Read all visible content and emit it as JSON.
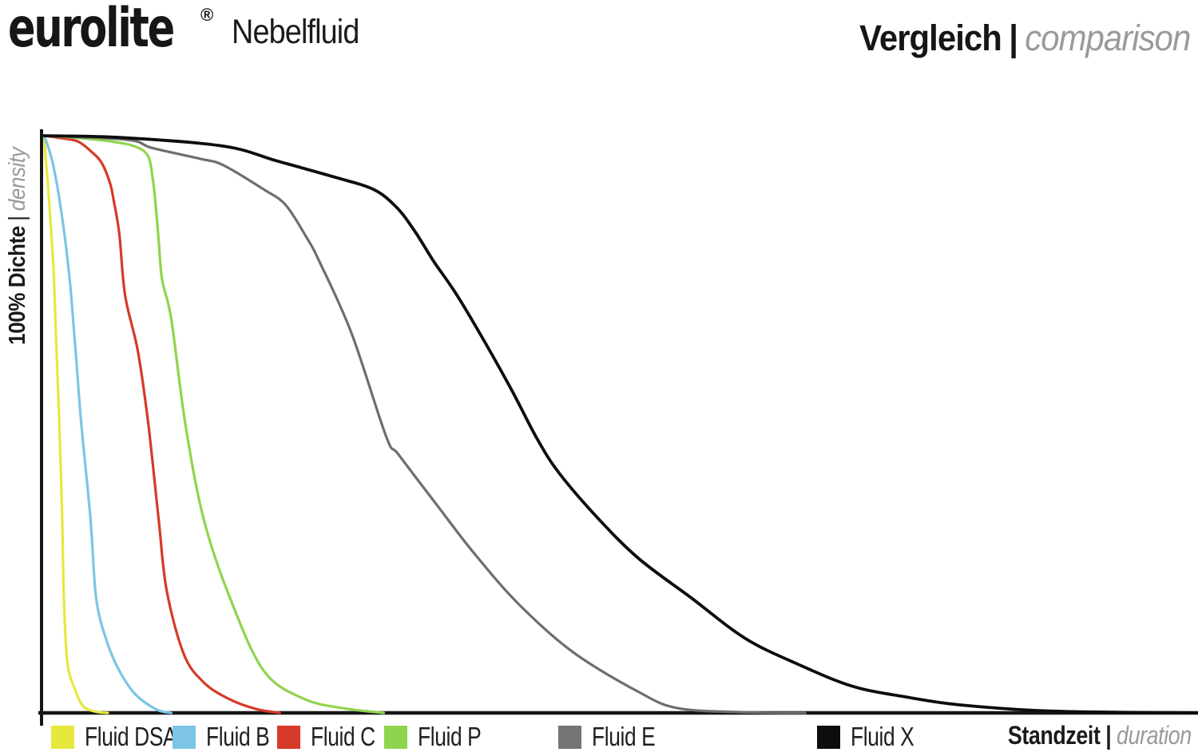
{
  "header": {
    "logo_text": "eurolite",
    "registered_mark": "®",
    "product": "Nebelfluid",
    "title_de": "Vergleich",
    "title_separator": "|",
    "title_en": "comparison"
  },
  "axes": {
    "y_label_de": "100% Dichte",
    "y_separator": "|",
    "y_label_en": "density",
    "x_label_de": "Standzeit",
    "x_separator": "|",
    "x_label_en": "duration"
  },
  "legend": [
    {
      "label": "Fluid DSA",
      "color": "#e7e83e"
    },
    {
      "label": "Fluid B",
      "color": "#7cc5e5"
    },
    {
      "label": "Fluid C",
      "color": "#d63a28"
    },
    {
      "label": "Fluid P",
      "color": "#8fd44d"
    },
    {
      "label": "Fluid E",
      "color": "#757575"
    },
    {
      "label": "Fluid X",
      "color": "#0d0d0d"
    }
  ],
  "colors": {
    "axis": "#161616",
    "text_dark": "#1b1b1b",
    "text_gray": "#9a9a9a",
    "background": "#ffffff"
  },
  "chart_data": {
    "type": "line",
    "title": "eurolite Nebelfluid — Vergleich | comparison",
    "xlabel": "Standzeit | duration",
    "ylabel": "100% Dichte | density",
    "x_range": [
      0,
      1
    ],
    "ylim": [
      0,
      100
    ],
    "grid": false,
    "legend_position": "bottom",
    "note": "x is unitless relative duration (no tick marks shown); y is fog density in % of initial (100%)",
    "series": [
      {
        "name": "Fluid DSA",
        "color": "#e7e83e",
        "width": 3.2,
        "points": [
          [
            0.001,
            100
          ],
          [
            0.002,
            96.5
          ],
          [
            0.004,
            92
          ],
          [
            0.006,
            86
          ],
          [
            0.009,
            77
          ],
          [
            0.011,
            66
          ],
          [
            0.014,
            50.2
          ],
          [
            0.0165,
            33.6
          ],
          [
            0.018,
            19.8
          ],
          [
            0.021,
            8.7
          ],
          [
            0.028,
            3.9
          ],
          [
            0.035,
            1.1
          ],
          [
            0.046,
            0.2
          ],
          [
            0.056,
            0
          ]
        ]
      },
      {
        "name": "Fluid B",
        "color": "#7cc5e5",
        "width": 3.2,
        "points": [
          [
            0.001,
            100
          ],
          [
            0.004,
            98.3
          ],
          [
            0.008,
            95.5
          ],
          [
            0.012,
            91.5
          ],
          [
            0.016,
            86.5
          ],
          [
            0.02,
            80.5
          ],
          [
            0.024,
            73
          ],
          [
            0.028,
            63
          ],
          [
            0.033,
            50.2
          ],
          [
            0.041,
            33.6
          ],
          [
            0.046,
            19.8
          ],
          [
            0.055,
            12.5
          ],
          [
            0.066,
            7.3
          ],
          [
            0.08,
            3.2
          ],
          [
            0.098,
            0.6
          ],
          [
            0.111,
            0
          ]
        ]
      },
      {
        "name": "Fluid C",
        "color": "#d63a28",
        "width": 3.2,
        "points": [
          [
            0.001,
            100
          ],
          [
            0.015,
            99.6
          ],
          [
            0.03,
            99
          ],
          [
            0.042,
            97.2
          ],
          [
            0.051,
            95.2
          ],
          [
            0.058,
            91.7
          ],
          [
            0.061,
            88.9
          ],
          [
            0.066,
            83
          ],
          [
            0.071,
            72.3
          ],
          [
            0.082,
            62.7
          ],
          [
            0.091,
            50.2
          ],
          [
            0.1,
            33.6
          ],
          [
            0.107,
            21.2
          ],
          [
            0.122,
            10.1
          ],
          [
            0.139,
            5.3
          ],
          [
            0.16,
            2.5
          ],
          [
            0.184,
            0.7
          ],
          [
            0.205,
            0
          ]
        ]
      },
      {
        "name": "Fluid P",
        "color": "#8fd44d",
        "width": 3.2,
        "points": [
          [
            0.001,
            100
          ],
          [
            0.025,
            99.7
          ],
          [
            0.059,
            99
          ],
          [
            0.08,
            98.1
          ],
          [
            0.091,
            96.4
          ],
          [
            0.095,
            92.4
          ],
          [
            0.097,
            88.9
          ],
          [
            0.1,
            82
          ],
          [
            0.103,
            75.1
          ],
          [
            0.111,
            68.2
          ],
          [
            0.123,
            50.2
          ],
          [
            0.139,
            33.6
          ],
          [
            0.162,
            19.8
          ],
          [
            0.191,
            7.3
          ],
          [
            0.225,
            2.5
          ],
          [
            0.26,
            0.8
          ],
          [
            0.295,
            0
          ]
        ]
      },
      {
        "name": "Fluid E",
        "color": "#6e6e6e",
        "width": 3.2,
        "points": [
          [
            0.001,
            100
          ],
          [
            0.073,
            99.3
          ],
          [
            0.094,
            97.9
          ],
          [
            0.136,
            96
          ],
          [
            0.156,
            94.9
          ],
          [
            0.191,
            90.7
          ],
          [
            0.21,
            88
          ],
          [
            0.228,
            82.4
          ],
          [
            0.239,
            78.3
          ],
          [
            0.267,
            65.8
          ],
          [
            0.297,
            47.9
          ],
          [
            0.308,
            44.7
          ],
          [
            0.341,
            36
          ],
          [
            0.373,
            27.7
          ],
          [
            0.412,
            18.8
          ],
          [
            0.459,
            10.5
          ],
          [
            0.516,
            3.6
          ],
          [
            0.55,
            0.8
          ],
          [
            0.608,
            0.1
          ],
          [
            0.66,
            0
          ]
        ]
      },
      {
        "name": "Fluid X",
        "color": "#0d0d0d",
        "width": 3.8,
        "points": [
          [
            0.001,
            100
          ],
          [
            0.066,
            99.7
          ],
          [
            0.156,
            98.2
          ],
          [
            0.203,
            95.6
          ],
          [
            0.253,
            92.8
          ],
          [
            0.286,
            90.7
          ],
          [
            0.306,
            87.6
          ],
          [
            0.322,
            83.4
          ],
          [
            0.338,
            78.3
          ],
          [
            0.357,
            72.8
          ],
          [
            0.378,
            65.8
          ],
          [
            0.405,
            56.2
          ],
          [
            0.428,
            47.4
          ],
          [
            0.447,
            41.5
          ],
          [
            0.481,
            33.6
          ],
          [
            0.516,
            26.7
          ],
          [
            0.562,
            19.8
          ],
          [
            0.608,
            12.9
          ],
          [
            0.654,
            8.4
          ],
          [
            0.701,
            4.6
          ],
          [
            0.746,
            2.8
          ],
          [
            0.793,
            1.4
          ],
          [
            0.874,
            0.3
          ],
          [
            1.0,
            0
          ]
        ]
      }
    ]
  }
}
